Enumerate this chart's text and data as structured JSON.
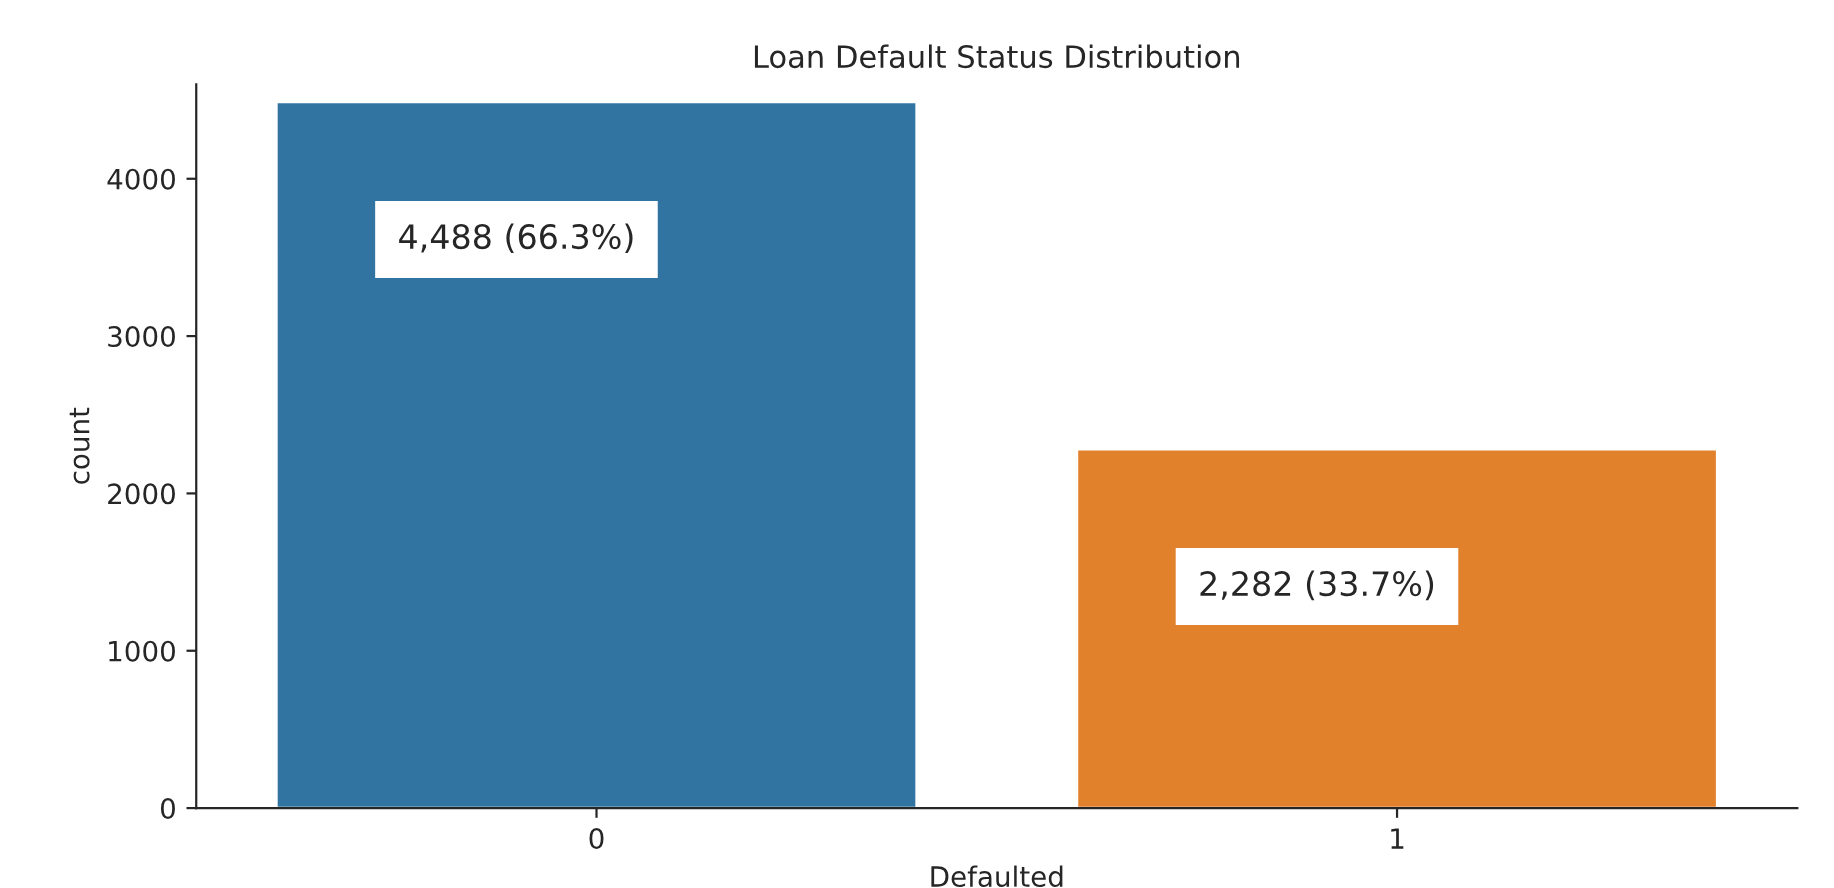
{
  "chart_data": {
    "type": "bar",
    "title": "Loan Default Status Distribution",
    "xlabel": "Defaulted",
    "ylabel": "count",
    "categories": [
      "0",
      "1"
    ],
    "values": [
      4488,
      2282
    ],
    "colors": [
      "#3274a1",
      "#e1812c"
    ],
    "value_labels": [
      "4,488 (66.3%)",
      "2,282 (33.7%)"
    ],
    "ylim": [
      0,
      4600
    ],
    "yticks": [
      0,
      1000,
      2000,
      3000,
      4000
    ],
    "grid": false,
    "legend": false
  }
}
